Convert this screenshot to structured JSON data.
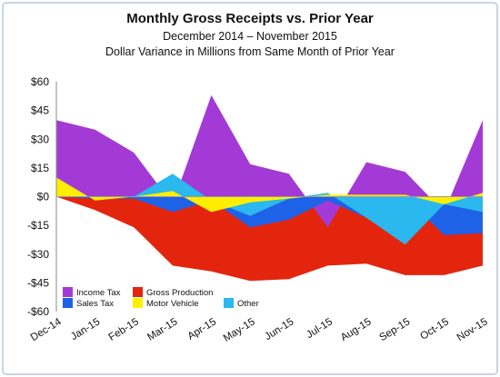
{
  "chart_data": {
    "type": "area",
    "title": "Monthly Gross Receipts vs. Prior Year",
    "subtitle": "December 2014 – November 2015",
    "subtitle2": "Dollar Variance in Millions from Same Month of Prior Year",
    "xlabel": "",
    "ylabel": "",
    "categories": [
      "Dec-14",
      "Jan-15",
      "Feb-15",
      "Mar-15",
      "Apr-15",
      "May-15",
      "Jun-15",
      "Jul-15",
      "Aug-15",
      "Sep-15",
      "Oct-15",
      "Nov-15"
    ],
    "ylim": [
      -60,
      60
    ],
    "yticks": [
      60,
      45,
      30,
      15,
      0,
      -15,
      -30,
      -45,
      -60
    ],
    "ytick_labels": [
      "$60",
      "$45",
      "$30",
      "$15",
      "$0",
      "-$15",
      "-$30",
      "-$45",
      "-$60"
    ],
    "grid": false,
    "legend_position": "bottom-left, inside plot",
    "series": [
      {
        "name": "Income Tax",
        "color": "#a43ad6",
        "values": [
          40,
          35,
          23,
          -4,
          53,
          17,
          12,
          -16,
          18,
          13,
          -8,
          40
        ]
      },
      {
        "name": "Gross Production",
        "color": "#e3250e",
        "values": [
          0,
          -7,
          -16,
          -36,
          -39,
          -44,
          -43,
          -36,
          -35,
          -41,
          -41,
          -36
        ]
      },
      {
        "name": "Sales Tax",
        "color": "#1e62e8",
        "values": [
          0,
          -1,
          -1,
          -8,
          -2,
          -16,
          -12,
          -2,
          -11,
          0,
          -20,
          -19
        ]
      },
      {
        "name": "Motor Vehicle",
        "color": "#ffee00",
        "values": [
          10,
          -2,
          0,
          3,
          -8,
          -3,
          -1,
          1,
          1,
          1,
          -4,
          2
        ]
      },
      {
        "name": "Other",
        "color": "#2ab8ee",
        "values": [
          0,
          0,
          0,
          12,
          -2,
          -10,
          -1,
          2,
          -11,
          -25,
          -4,
          -8
        ]
      }
    ]
  }
}
